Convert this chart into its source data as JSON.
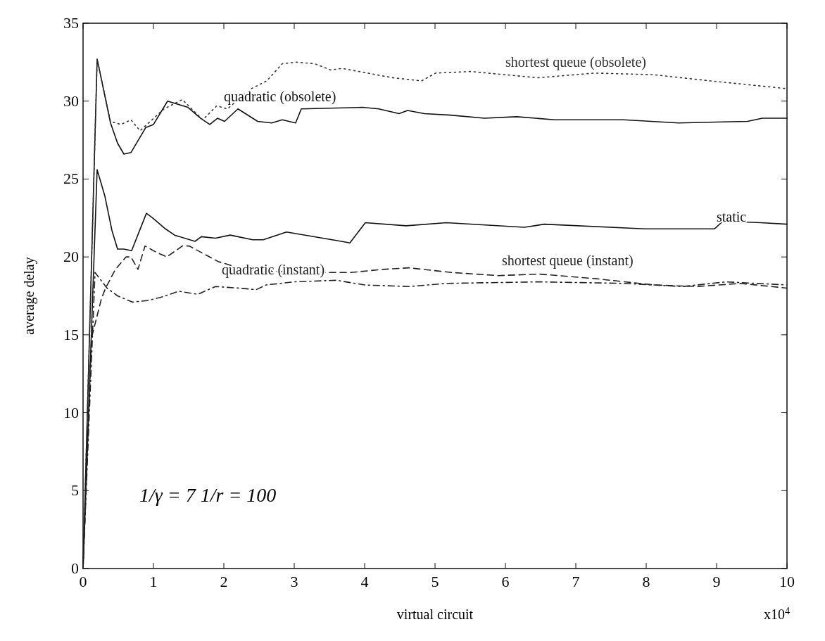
{
  "chart_data": {
    "type": "line",
    "xlabel": "virtual circuit",
    "ylabel": "average delay",
    "xlim": [
      0,
      10
    ],
    "xticks": [
      0,
      1,
      2,
      3,
      4,
      5,
      6,
      7,
      8,
      9,
      10
    ],
    "ylim": [
      0,
      35
    ],
    "yticks": [
      0,
      5,
      10,
      15,
      20,
      25,
      30,
      35
    ],
    "grid": false,
    "legend": false,
    "series": [
      {
        "name": "quadratic (obsolete)",
        "color": "#111111",
        "line_style": "solid",
        "x": [
          0,
          0.2,
          0.39,
          0.49,
          0.58,
          0.68,
          0.89,
          1.0,
          1.2,
          1.49,
          1.67,
          1.8,
          1.91,
          2.01,
          2.2,
          2.48,
          2.68,
          2.83,
          3.02,
          3.1,
          3.97,
          4.2,
          4.49,
          4.61,
          4.85,
          5.22,
          5.7,
          6.16,
          6.7,
          7.68,
          8.46,
          9.44,
          9.65,
          10
        ],
        "values": [
          0,
          32.7,
          28.6,
          27.3,
          26.6,
          26.7,
          28.3,
          28.5,
          30.0,
          29.6,
          28.9,
          28.5,
          28.9,
          28.7,
          29.5,
          28.7,
          28.6,
          28.8,
          28.6,
          29.5,
          29.6,
          29.5,
          29.2,
          29.4,
          29.2,
          29.1,
          28.9,
          29.0,
          28.8,
          28.8,
          28.6,
          28.7,
          28.9,
          28.9
        ]
      },
      {
        "name": "shortest queue (obsolete)",
        "color": "#333333",
        "line_style": "dotted",
        "x": [
          0,
          0.2,
          0.39,
          0.54,
          0.68,
          0.81,
          1.15,
          1.41,
          1.7,
          1.9,
          2.05,
          2.39,
          2.61,
          2.83,
          3.03,
          3.29,
          3.52,
          3.68,
          4.4,
          4.81,
          5.01,
          5.51,
          6.46,
          7.27,
          8.09,
          8.91,
          10
        ],
        "values": [
          0,
          32.7,
          28.7,
          28.5,
          28.8,
          28.1,
          29.5,
          30.1,
          28.8,
          29.7,
          29.5,
          30.8,
          31.3,
          32.4,
          32.5,
          32.4,
          32.0,
          32.1,
          31.5,
          31.3,
          31.8,
          31.9,
          31.5,
          31.8,
          31.7,
          31.3,
          30.8
        ]
      },
      {
        "name": "static",
        "color": "#111111",
        "line_style": "solid",
        "x": [
          0,
          0.2,
          0.31,
          0.41,
          0.49,
          0.58,
          0.69,
          0.9,
          0.99,
          1.17,
          1.3,
          1.59,
          1.68,
          1.88,
          2.09,
          2.41,
          2.56,
          2.89,
          3.67,
          3.79,
          4.01,
          4.59,
          5.16,
          6.27,
          6.55,
          7.98,
          8.97,
          9.09,
          9.63,
          10
        ],
        "values": [
          0,
          25.6,
          23.9,
          21.7,
          20.5,
          20.5,
          20.4,
          22.8,
          22.5,
          21.8,
          21.4,
          21.0,
          21.3,
          21.2,
          21.4,
          21.1,
          21.1,
          21.6,
          21.0,
          20.9,
          22.2,
          22.0,
          22.2,
          21.9,
          22.1,
          21.8,
          21.8,
          22.3,
          22.2,
          22.1
        ]
      },
      {
        "name": "shortest queue (instant)",
        "color": "#222222",
        "line_style": "dashed",
        "x": [
          0,
          0.12,
          0.26,
          0.32,
          0.46,
          0.61,
          0.68,
          0.78,
          0.88,
          1.04,
          1.19,
          1.41,
          1.51,
          1.92,
          2.07,
          2.27,
          3.0,
          3.8,
          4.26,
          4.63,
          5.24,
          5.9,
          6.48,
          7.29,
          8.11,
          8.72,
          9.34,
          10
        ],
        "values": [
          0,
          14.8,
          17.3,
          18.0,
          19.2,
          20.0,
          20.0,
          19.2,
          20.7,
          20.3,
          20.0,
          20.7,
          20.7,
          19.7,
          19.5,
          19.2,
          19.0,
          19.0,
          19.2,
          19.3,
          19.0,
          18.8,
          18.9,
          18.6,
          18.2,
          18.1,
          18.3,
          18.0
        ]
      },
      {
        "name": "quadratic (instant)",
        "color": "#222222",
        "line_style": "dashdot",
        "x": [
          0,
          0.17,
          0.34,
          0.49,
          0.7,
          0.91,
          1.1,
          1.36,
          1.63,
          1.88,
          2.21,
          2.46,
          2.6,
          3.0,
          3.6,
          4.0,
          4.63,
          5.16,
          6.48,
          7.7,
          8.52,
          9.13,
          10
        ],
        "values": [
          0,
          19.0,
          18.0,
          17.5,
          17.1,
          17.2,
          17.4,
          17.8,
          17.6,
          18.1,
          18.0,
          17.9,
          18.2,
          18.4,
          18.5,
          18.2,
          18.1,
          18.3,
          18.4,
          18.3,
          18.1,
          18.4,
          18.2
        ]
      }
    ],
    "annotations": [
      "1/γ = 7    1/r = 100",
      "x10$^{4}$"
    ]
  }
}
